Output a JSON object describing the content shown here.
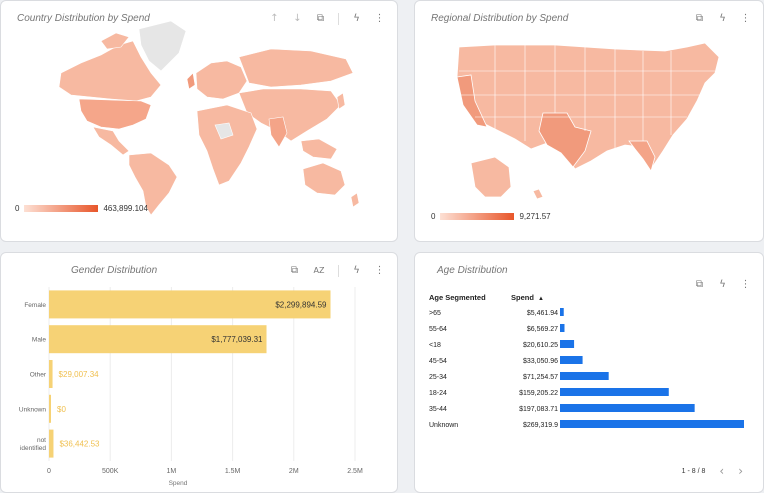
{
  "country_card": {
    "title": "Country Distribution by Spend",
    "legend_min": "0",
    "legend_max": "463,899.104",
    "toolbar_icons": [
      "arrow-up-icon",
      "arrow-down-icon",
      "export-icon",
      "bolt-icon",
      "more-vert-icon"
    ]
  },
  "regional_card": {
    "title": "Regional Distribution by Spend",
    "legend_min": "0",
    "legend_max": "9,271.57",
    "toolbar_icons": [
      "export-icon",
      "bolt-icon",
      "more-vert-icon"
    ]
  },
  "gender_card": {
    "title": "Gender Distribution",
    "sort_label": "AZ",
    "toolbar_icons": [
      "export-icon",
      "sort-az-icon",
      "bolt-icon",
      "more-vert-icon"
    ]
  },
  "age_card": {
    "title": "Age Distribution",
    "col_segment": "Age Segmented",
    "col_spend": "Spend",
    "sort_indicator": "▲",
    "pager_text": "1 - 8 / 8",
    "prev_glyph": "‹",
    "next_glyph": "›",
    "toolbar_icons": [
      "export-icon",
      "bolt-icon",
      "more-vert-icon"
    ]
  },
  "colors": {
    "map_fill": "#f7b9a1",
    "map_dark": "#e8562a",
    "map_empty": "#e8e8e8",
    "bar_gender": "#f6d275",
    "bar_age": "#1a73e8"
  },
  "chart_data": [
    {
      "type": "bar",
      "orientation": "horizontal",
      "categories": [
        "Female",
        "Male",
        "Other",
        "Unknown",
        "not identified"
      ],
      "values": [
        2299894.59,
        1777039.31,
        29007.34,
        0,
        36442.53
      ],
      "value_labels": [
        "$2,299,894.59",
        "$1,777,039.31",
        "$29,007.34",
        "$0",
        "$36,442.53"
      ],
      "xlabel": "Spend",
      "xlim": [
        0,
        2500000
      ],
      "ticks": [
        0,
        500000,
        1000000,
        1500000,
        2000000,
        2500000
      ],
      "tick_labels": [
        "0",
        "500K",
        "1M",
        "1.5M",
        "2M",
        "2.5M"
      ],
      "grid": true
    },
    {
      "type": "table",
      "columns": [
        "Age Segmented",
        "Spend"
      ],
      "categories": [
        ">65",
        "55-64",
        "<18",
        "45-54",
        "25-34",
        "18-24",
        "35-44",
        "Unknown"
      ],
      "values": [
        5461.94,
        6569.27,
        20610.25,
        33050.96,
        71254.57,
        159205.22,
        197083.71,
        269319.9
      ],
      "value_labels": [
        "$5,461.94",
        "$6,569.27",
        "$20,610.25",
        "$33,050.96",
        "$71,254.57",
        "$159,205.22",
        "$197,083.71",
        "$269,319.9"
      ]
    }
  ]
}
